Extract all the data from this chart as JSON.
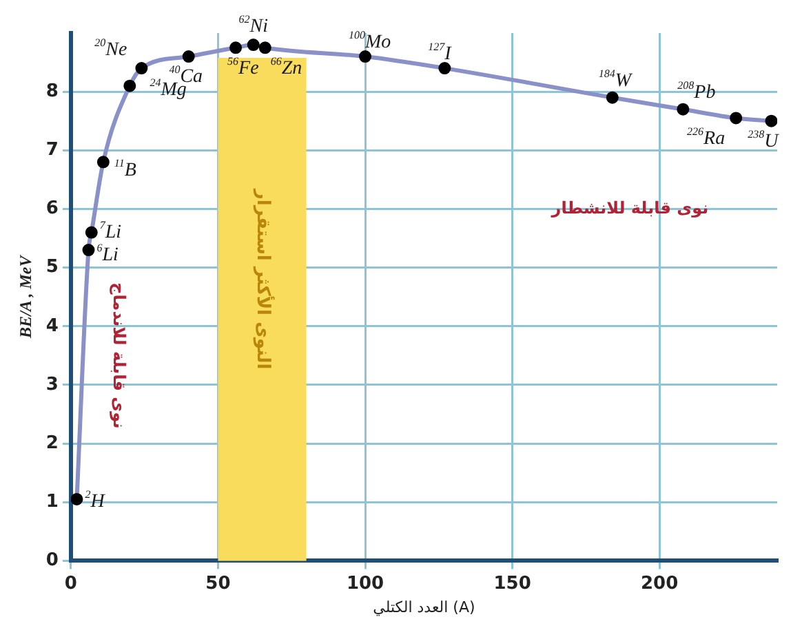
{
  "chart_data": {
    "type": "line",
    "xlabel": "العدد الكتلي (A)",
    "ylabel": "BE/A , MeV",
    "xlim": [
      0,
      240
    ],
    "ylim": [
      0,
      9
    ],
    "xticks": [
      0,
      50,
      100,
      150,
      200
    ],
    "yticks": [
      0,
      1,
      2,
      3,
      4,
      5,
      6,
      7,
      8
    ],
    "grid": true,
    "marker": "circle",
    "line_style": "solid",
    "series": [
      {
        "color": "#8a90c8",
        "x": [
          2,
          6,
          7,
          11,
          20,
          24,
          40,
          56,
          62,
          66,
          100,
          127,
          184,
          208,
          226,
          238
        ],
        "values": [
          1.05,
          5.3,
          5.6,
          6.8,
          8.1,
          8.4,
          8.6,
          8.75,
          8.8,
          8.75,
          8.6,
          8.4,
          7.9,
          7.7,
          7.55,
          7.5
        ]
      }
    ],
    "bands": [
      {
        "axis": "x",
        "from": 50,
        "to": 80,
        "label": "النوى الأكثر استقرار",
        "color": "#f9dc5c"
      }
    ],
    "annotations": [
      "نوى قابلة للاندماج",
      "نوى قابلة للانشطار",
      {
        "text": "$^{2}$H",
        "x": 2,
        "y": 1.05
      },
      {
        "text": "$^{6}$Li",
        "x": 6,
        "y": 5.3
      },
      {
        "text": "$^{7}$Li",
        "x": 7,
        "y": 5.6
      },
      {
        "text": "$^{11}$B",
        "x": 11,
        "y": 6.8
      },
      {
        "text": "$^{20}$Ne",
        "x": 20,
        "y": 8.1
      },
      {
        "text": "$^{24}$Mg",
        "x": 24,
        "y": 8.4
      },
      {
        "text": "$^{40}$Ca",
        "x": 40,
        "y": 8.6
      },
      {
        "text": "$^{56}$Fe",
        "x": 56,
        "y": 8.75
      },
      {
        "text": "$^{62}$Ni",
        "x": 62,
        "y": 8.8
      },
      {
        "text": "$^{66}$Zn",
        "x": 66,
        "y": 8.75
      },
      {
        "text": "$^{100}$Mo",
        "x": 100,
        "y": 8.6
      },
      {
        "text": "$^{127}$I",
        "x": 127,
        "y": 8.4
      },
      {
        "text": "$^{184}$W",
        "x": 184,
        "y": 7.9
      },
      {
        "text": "$^{208}$Pb",
        "x": 208,
        "y": 7.7
      },
      {
        "text": "$^{226}$Ra",
        "x": 226,
        "y": 7.55
      },
      {
        "text": "$^{238}$U",
        "x": 238,
        "y": 7.5
      }
    ]
  }
}
